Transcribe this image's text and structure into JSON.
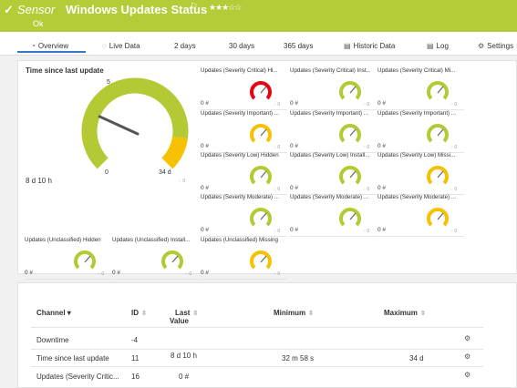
{
  "header": {
    "check": "✓",
    "type_label": "Sensor",
    "title": "Windows Updates Status",
    "flag": "⚐",
    "stars": "★★★☆☆",
    "status": "Ok"
  },
  "tabs": [
    {
      "icon": "◔",
      "label": "Overview"
    },
    {
      "icon": "◌",
      "label": "Live Data"
    },
    {
      "icon": "",
      "label": "2 days"
    },
    {
      "icon": "",
      "label": "30 days"
    },
    {
      "icon": "",
      "label": "365 days"
    },
    {
      "icon": "▤",
      "label": "Historic Data"
    },
    {
      "icon": "▤",
      "label": "Log"
    },
    {
      "icon": "⚙",
      "label": "Settings"
    }
  ],
  "overview": {
    "big_gauge": {
      "title": "Time since last update",
      "value": "8 d 10 h",
      "min_label": "0",
      "max_label": "34 d",
      "mark_label": "5",
      "fraction": 0.25
    },
    "gauges": [
      {
        "label": "Updates (Severity Critical) Hi...",
        "value": "0 #",
        "color": "#e30613"
      },
      {
        "label": "Updates (Severity Critical) Inst...",
        "value": "0 #",
        "color": "#b4c934"
      },
      {
        "label": "Updates (Severity Critical) Mi...",
        "value": "0 #",
        "color": "#b4c934"
      },
      {
        "label": "Updates (Severity Important) ...",
        "value": "0 #",
        "color": "#f5c100"
      },
      {
        "label": "Updates (Severity Important) ...",
        "value": "0 #",
        "color": "#b4c934"
      },
      {
        "label": "Updates (Severity Important) ...",
        "value": "0 #",
        "color": "#b4c934"
      },
      {
        "label": "Updates (Severity Low) Hidden",
        "value": "0 #",
        "color": "#b4c934"
      },
      {
        "label": "Updates (Severity Low) Install...",
        "value": "0 #",
        "color": "#b4c934"
      },
      {
        "label": "Updates (Severity Low) Missi...",
        "value": "0 #",
        "color": "#f5c100"
      },
      {
        "label": "Updates (Severity Moderate) ...",
        "value": "0 #",
        "color": "#b4c934"
      },
      {
        "label": "Updates (Severity Moderate) ...",
        "value": "0 #",
        "color": "#b4c934"
      },
      {
        "label": "Updates (Severity Moderate) ...",
        "value": "0 #",
        "color": "#f5c100"
      },
      {
        "label": "Updates (Unclassified) Hidden",
        "value": "0 #",
        "color": "#b4c934"
      },
      {
        "label": "Updates (Unclassified) Install...",
        "value": "0 #",
        "color": "#b4c934"
      },
      {
        "label": "Updates (Unclassified) Missing",
        "value": "0 #",
        "color": "#f5c100"
      }
    ],
    "loading_icon": "◌ 0"
  },
  "table": {
    "headers": [
      "Channel",
      "ID",
      "Last Value",
      "Minimum",
      "Maximum"
    ],
    "header_last_line1": "Last",
    "header_last_line2": "Value",
    "sort_desc": "▾",
    "sort_icon": "⇳",
    "rows": [
      {
        "channel": "Downtime",
        "id": "-4",
        "last": "",
        "min": "",
        "max": ""
      },
      {
        "channel": "Time since last update",
        "id": "11",
        "last": "8 d 10 h",
        "min": "32 m 58 s",
        "max": "34 d"
      },
      {
        "channel": "Updates (Severity Critic...",
        "id": "16",
        "last": "0 #",
        "min": "",
        "max": ""
      }
    ],
    "gear_icon": "⚙"
  },
  "colors": {
    "brand": "#b4cc38",
    "ok": "#b4c934",
    "warning": "#f5c100",
    "error": "#e30613",
    "accent": "#2e7bd0"
  }
}
